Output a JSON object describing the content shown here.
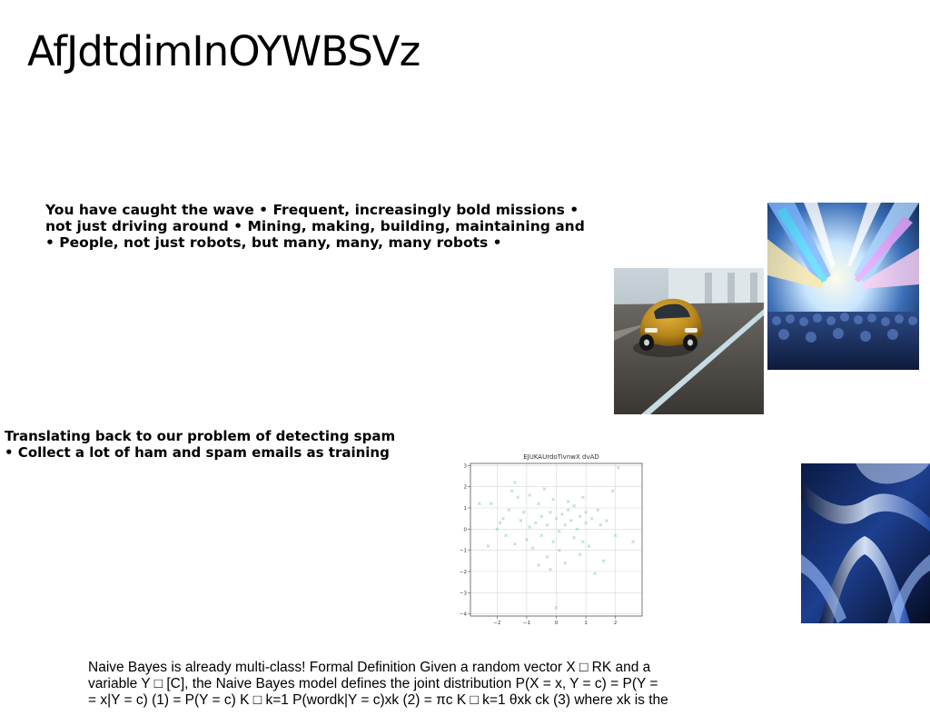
{
  "slide": {
    "title": "AfJdtdimInOYWBSVz",
    "paragraph1": {
      "lines": [
        "You have caught the wave • Frequent, increasingly bold missions •",
        "not just driving around • Mining, making, building, maintaining and",
        "• People, not just robots, but many, many, many robots •"
      ]
    },
    "paragraph2": {
      "lines": [
        "Translating back to our problem of detecting spam",
        "• Collect a lot of ham and spam emails as training"
      ]
    },
    "paragraph3": {
      "lines": [
        "Naive Bayes is already multi-class! Formal Definition Given a random vector X □ RK and a",
        "variable Y □ [C], the Naive Bayes model defines the joint distribution P(X = x, Y = c) = P(Y =",
        "= x|Y = c) (1) = P(Y = c) K □ k=1 P(wordk|Y = c)xk (2) = πc K □ k=1 θxk ck (3) where xk is the"
      ]
    },
    "images": {
      "car": "yellow-beetle-car-photo",
      "city": "motion-blur-city-crowd-photo",
      "abstract": "blue-chrome-abstract-image"
    }
  },
  "chart_data": {
    "type": "scatter",
    "title": "EJUKAUrdoTivnwX dvAD",
    "xlabel": "",
    "ylabel": "",
    "xlim": [
      -2.9,
      2.9
    ],
    "ylim": [
      -4.1,
      3.1
    ],
    "xticks": [
      -2,
      -1,
      0,
      1,
      2
    ],
    "yticks": [
      -4,
      -3,
      -2,
      -1,
      0,
      1,
      2,
      3
    ],
    "grid": true,
    "marker": "x",
    "color": "#9fd3b8",
    "points": [
      [
        -2.6,
        1.2
      ],
      [
        -2.2,
        1.2
      ],
      [
        -2.3,
        -0.8
      ],
      [
        -2.0,
        0.0
      ],
      [
        -1.9,
        0.3
      ],
      [
        -1.8,
        0.5
      ],
      [
        -1.6,
        0.9
      ],
      [
        -1.5,
        1.8
      ],
      [
        -1.4,
        2.2
      ],
      [
        -1.3,
        1.5
      ],
      [
        -1.2,
        0.4
      ],
      [
        -1.1,
        0.8
      ],
      [
        -1.0,
        -0.5
      ],
      [
        -0.9,
        0.1
      ],
      [
        -0.9,
        1.6
      ],
      [
        -0.8,
        -0.9
      ],
      [
        -0.7,
        0.3
      ],
      [
        -0.6,
        1.2
      ],
      [
        -0.5,
        -0.3
      ],
      [
        -0.5,
        0.6
      ],
      [
        -0.4,
        1.9
      ],
      [
        -0.3,
        -1.3
      ],
      [
        -0.3,
        0.2
      ],
      [
        -0.2,
        0.8
      ],
      [
        -0.1,
        -0.6
      ],
      [
        -0.1,
        1.4
      ],
      [
        0.0,
        0.5
      ],
      [
        0.1,
        -0.1
      ],
      [
        0.1,
        -1.0
      ],
      [
        0.2,
        0.7
      ],
      [
        0.3,
        0.2
      ],
      [
        0.3,
        -1.6
      ],
      [
        0.4,
        0.9
      ],
      [
        0.5,
        0.4
      ],
      [
        0.6,
        -0.4
      ],
      [
        0.6,
        1.1
      ],
      [
        0.7,
        0.0
      ],
      [
        0.8,
        0.6
      ],
      [
        0.8,
        -1.2
      ],
      [
        0.9,
        1.5
      ],
      [
        1.0,
        0.3
      ],
      [
        1.1,
        -0.8
      ],
      [
        1.2,
        0.5
      ],
      [
        1.3,
        -2.1
      ],
      [
        1.4,
        0.9
      ],
      [
        1.5,
        0.2
      ],
      [
        1.6,
        -1.5
      ],
      [
        1.7,
        0.4
      ],
      [
        1.9,
        1.8
      ],
      [
        2.0,
        -0.3
      ],
      [
        2.1,
        2.9
      ],
      [
        2.6,
        -0.6
      ],
      [
        -0.6,
        -1.7
      ],
      [
        0.9,
        -0.6
      ],
      [
        -1.7,
        -0.3
      ],
      [
        0.0,
        -3.7
      ],
      [
        -1.4,
        -0.7
      ],
      [
        0.4,
        1.3
      ],
      [
        1.0,
        0.8
      ],
      [
        -0.2,
        -1.9
      ]
    ]
  }
}
